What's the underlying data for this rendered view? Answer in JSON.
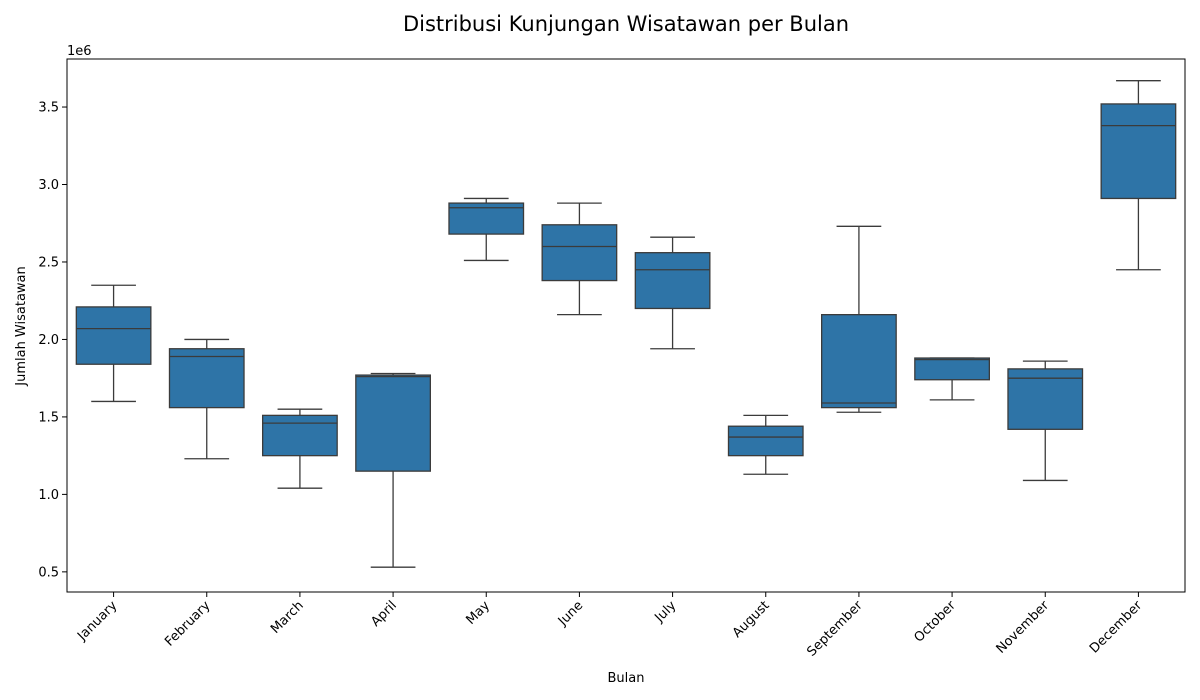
{
  "chart_data": {
    "type": "boxplot",
    "title": "Distribusi Kunjungan Wisatawan per Bulan",
    "xlabel": "Bulan",
    "ylabel": "Jumlah Wisatawan",
    "y_offset_label": "1e6",
    "ylim": [
      0.37,
      3.81
    ],
    "yticks": [
      0.5,
      1.0,
      1.5,
      2.0,
      2.5,
      3.0,
      3.5
    ],
    "ytick_labels": [
      "0.5",
      "1.0",
      "1.5",
      "2.0",
      "2.5",
      "3.0",
      "3.5"
    ],
    "y_unit_multiplier": 1000000,
    "grid": false,
    "box_color": "#2e74a7",
    "line_color": "#3b3b3b",
    "categories": [
      "January",
      "February",
      "March",
      "April",
      "May",
      "June",
      "July",
      "August",
      "September",
      "October",
      "November",
      "December"
    ],
    "boxes": [
      {
        "whislo": 1.6,
        "q1": 1.84,
        "med": 2.07,
        "q3": 2.21,
        "whishi": 2.35
      },
      {
        "whislo": 1.23,
        "q1": 1.56,
        "med": 1.89,
        "q3": 1.94,
        "whishi": 2.0
      },
      {
        "whislo": 1.04,
        "q1": 1.25,
        "med": 1.46,
        "q3": 1.51,
        "whishi": 1.55
      },
      {
        "whislo": 0.53,
        "q1": 1.15,
        "med": 1.76,
        "q3": 1.77,
        "whishi": 1.78
      },
      {
        "whislo": 2.51,
        "q1": 2.68,
        "med": 2.85,
        "q3": 2.88,
        "whishi": 2.91
      },
      {
        "whislo": 2.16,
        "q1": 2.38,
        "med": 2.6,
        "q3": 2.74,
        "whishi": 2.88
      },
      {
        "whislo": 1.94,
        "q1": 2.2,
        "med": 2.45,
        "q3": 2.56,
        "whishi": 2.66
      },
      {
        "whislo": 1.13,
        "q1": 1.25,
        "med": 1.37,
        "q3": 1.44,
        "whishi": 1.51
      },
      {
        "whislo": 1.53,
        "q1": 1.56,
        "med": 1.59,
        "q3": 2.16,
        "whishi": 2.73
      },
      {
        "whislo": 1.61,
        "q1": 1.74,
        "med": 1.87,
        "q3": 1.88,
        "whishi": 1.88
      },
      {
        "whislo": 1.09,
        "q1": 1.42,
        "med": 1.75,
        "q3": 1.81,
        "whishi": 1.86
      },
      {
        "whislo": 2.45,
        "q1": 2.91,
        "med": 3.38,
        "q3": 3.52,
        "whishi": 3.67
      }
    ]
  }
}
